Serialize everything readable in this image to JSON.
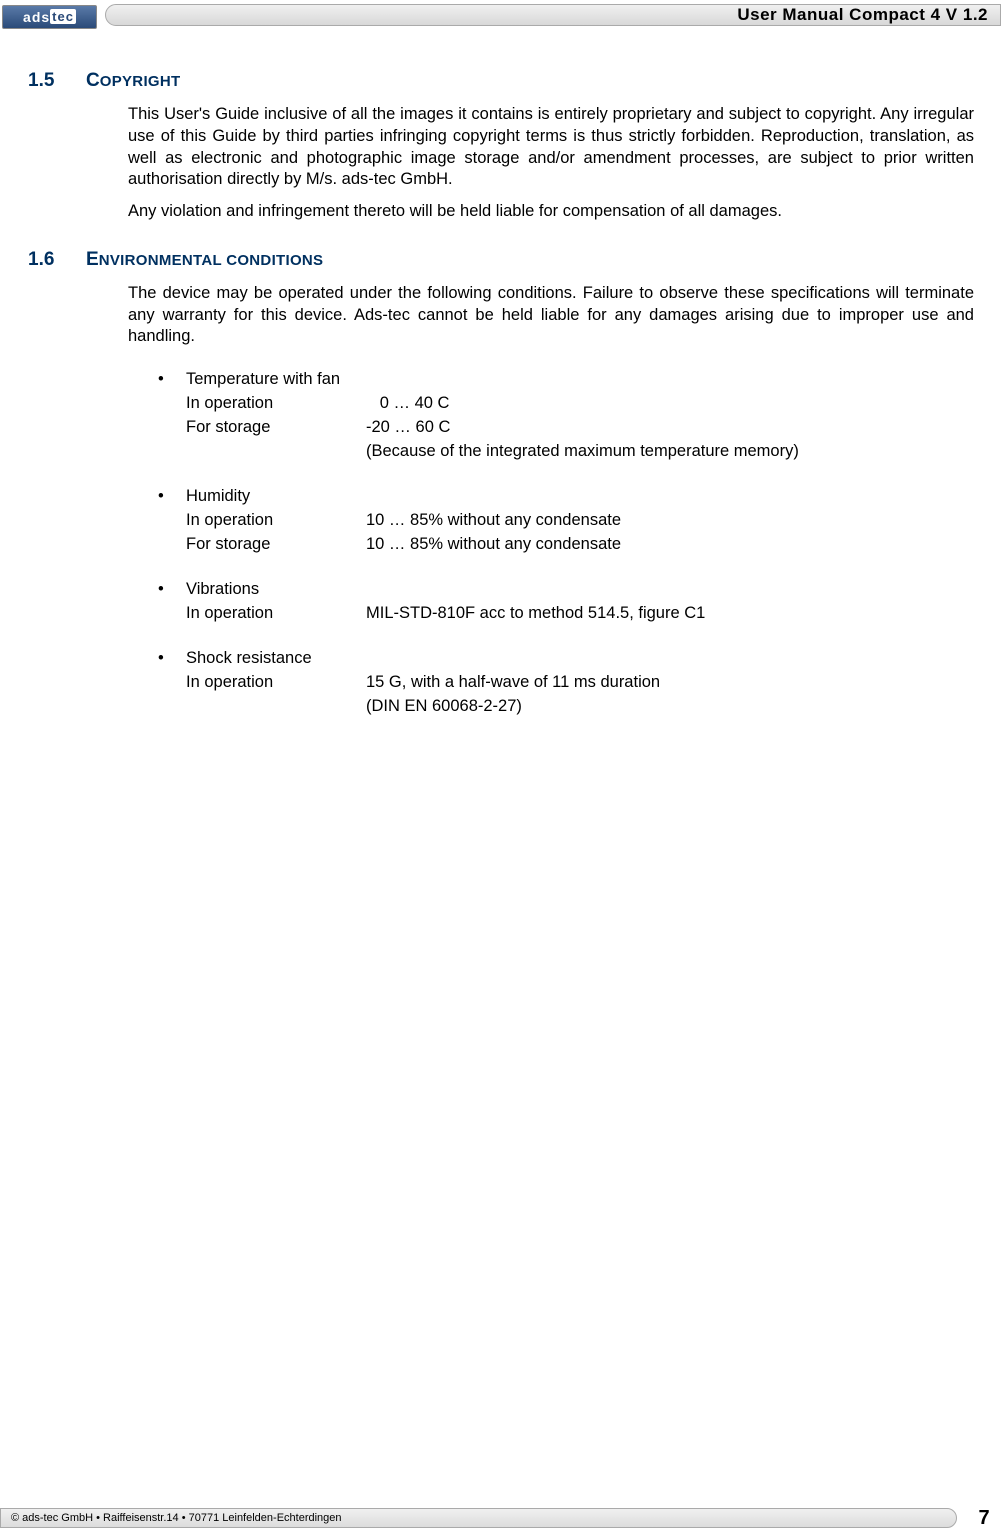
{
  "header": {
    "logo_text_a": "ads",
    "logo_text_b": "tec",
    "title": "User Manual Compact 4 V 1.2"
  },
  "sections": {
    "s15": {
      "num": "1.5",
      "title_cap": "C",
      "title_rest": "OPYRIGHT",
      "p1": "This User's Guide inclusive of all the images it contains is entirely proprietary and subject to copyright. Any irregular use of this Guide by third parties infringing copyright terms is thus strictly forbidden. Reproduction, translation, as well as electronic and photographic image storage and/or amendment processes, are subject to prior written authorisation directly by M/s. ads-tec GmbH.",
      "p2": "Any violation and infringement thereto will be held liable for compensation of all damages."
    },
    "s16": {
      "num": "1.6",
      "title_cap": "E",
      "title_rest": "NVIRONMENTAL CONDITIONS",
      "p1": "The device may be operated under the following conditions. Failure to observe these specifications will terminate any warranty for this device. Ads-tec cannot be held liable for any damages arising due to improper use and handling.",
      "items": [
        {
          "head": "Temperature with fan",
          "rows": [
            {
              "lbl": "In operation",
              "val": "   0 … 40 C",
              "indent": true
            },
            {
              "lbl": "For storage",
              "val": "-20 … 60 C"
            },
            {
              "lbl": "",
              "val": "(Because of the integrated maximum temperature memory)"
            }
          ]
        },
        {
          "head": "Humidity",
          "rows": [
            {
              "lbl": "In operation",
              "val": "10 … 85% without any condensate"
            },
            {
              "lbl": "For storage",
              "val": "10 … 85% without any condensate"
            }
          ]
        },
        {
          "head": "Vibrations",
          "rows": [
            {
              "lbl": "In operation",
              "val": "MIL-STD-810F acc to method 514.5, figure C1"
            }
          ]
        },
        {
          "head": "Shock resistance",
          "rows": [
            {
              "lbl": "In operation",
              "val": "15 G, with a half-wave of 11 ms duration"
            },
            {
              "lbl": "",
              "val": "(DIN EN 60068-2-27)"
            }
          ]
        }
      ]
    }
  },
  "footer": {
    "text": "© ads-tec GmbH • Raiffeisenstr.14 • 70771 Leinfelden-Echterdingen",
    "page": "7"
  },
  "colors": {
    "heading": "#003060",
    "text": "#000000",
    "rail_border": "#aaaaaa"
  }
}
